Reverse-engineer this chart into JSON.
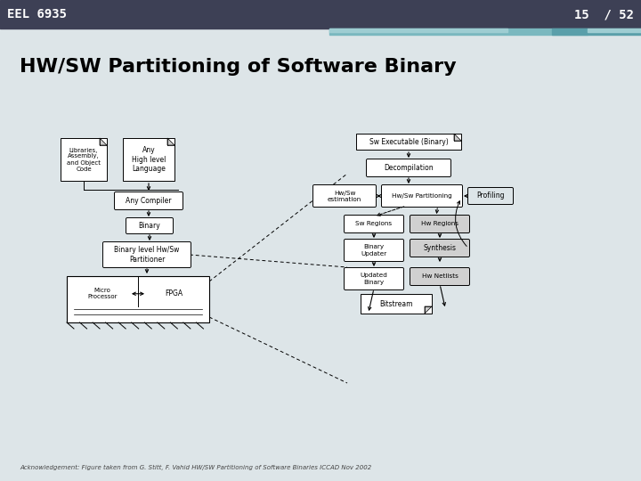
{
  "header_bg": "#3d4055",
  "header_text": "EEL 6935",
  "header_page": "15  / 52",
  "header_text_color": "#ffffff",
  "slide_bg": "#dde5e8",
  "title": "HW/SW Partitioning of Software Binary",
  "title_color": "#000000",
  "acknowledgement": "Acknowledgement: Figure taken from G. Stitt, F. Vahid HW/SW Partitioning of Software Binaries ICCAD Nov 2002",
  "bar1_color": "#7ab8bf",
  "bar2_color": "#9ecdd2",
  "bar3_color": "#5a9faa"
}
